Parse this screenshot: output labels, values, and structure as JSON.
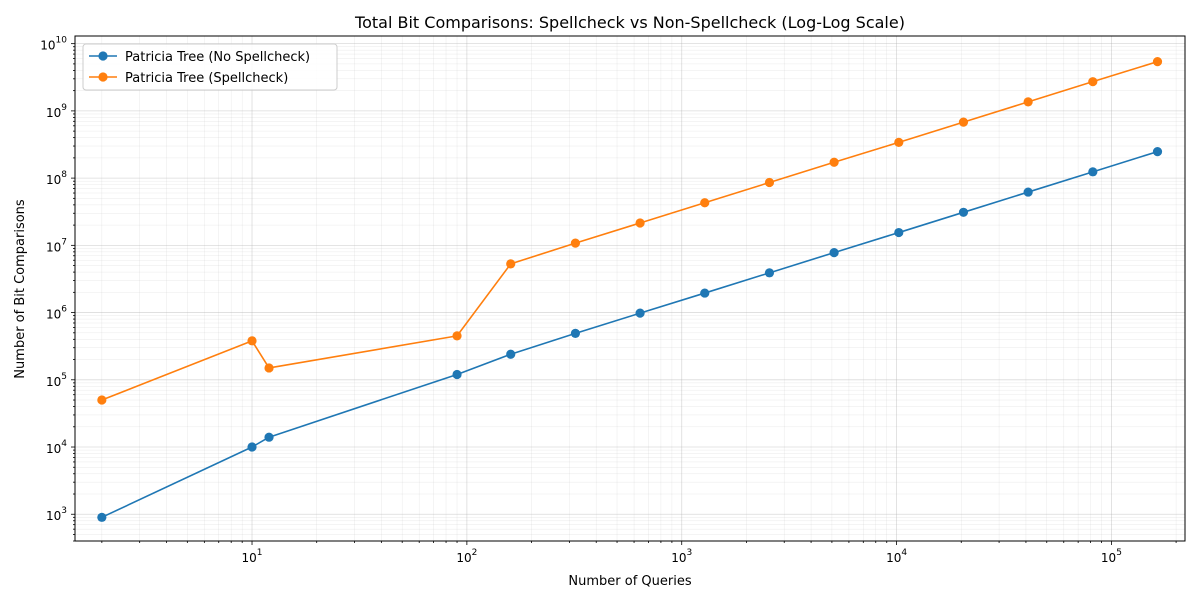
{
  "chart_data": {
    "type": "line",
    "title": "Total Bit Comparisons: Spellcheck vs Non-Spellcheck (Log-Log Scale)",
    "xlabel": "Number of Queries",
    "ylabel": "Number of Bit Comparisons",
    "xscale": "log",
    "yscale": "log",
    "xlim": [
      1.5,
      220000
    ],
    "ylim": [
      400,
      13000000000
    ],
    "x_ticks": [
      {
        "base": "10",
        "exp": "1",
        "value": 10
      },
      {
        "base": "10",
        "exp": "2",
        "value": 100
      },
      {
        "base": "10",
        "exp": "3",
        "value": 1000
      },
      {
        "base": "10",
        "exp": "4",
        "value": 10000
      },
      {
        "base": "10",
        "exp": "5",
        "value": 100000
      }
    ],
    "y_ticks": [
      {
        "base": "10",
        "exp": "3",
        "value": 1000
      },
      {
        "base": "10",
        "exp": "4",
        "value": 10000
      },
      {
        "base": "10",
        "exp": "5",
        "value": 100000
      },
      {
        "base": "10",
        "exp": "6",
        "value": 1000000
      },
      {
        "base": "10",
        "exp": "7",
        "value": 10000000
      },
      {
        "base": "10",
        "exp": "8",
        "value": 100000000
      },
      {
        "base": "10",
        "exp": "9",
        "value": 1000000000
      },
      {
        "base": "10",
        "exp": "10",
        "value": 10000000000
      }
    ],
    "grid": true,
    "legend_position": "top-left",
    "series": [
      {
        "name": "Patricia Tree (No Spellcheck)",
        "color": "#1f77b4",
        "marker": "circle",
        "x": [
          2,
          10,
          12,
          90,
          160,
          320,
          640,
          1280,
          2560,
          5120,
          10240,
          20480,
          40960,
          81920,
          163840
        ],
        "y": [
          900,
          10000,
          14000,
          120000,
          240000,
          490000,
          980000,
          1950000,
          3900000,
          7800000,
          15500000,
          31000000,
          62000000,
          124000000,
          248000000
        ]
      },
      {
        "name": "Patricia Tree (Spellcheck)",
        "color": "#ff7f0e",
        "marker": "circle",
        "x": [
          2,
          10,
          12,
          90,
          160,
          320,
          640,
          1280,
          2560,
          5120,
          10240,
          20480,
          40960,
          81920,
          163840
        ],
        "y": [
          50000,
          380000,
          150000,
          450000,
          5300000,
          10800000,
          21500000,
          43000000,
          86000000,
          172000000,
          340000000,
          680000000,
          1360000000,
          2720000000,
          5400000000
        ]
      }
    ]
  }
}
